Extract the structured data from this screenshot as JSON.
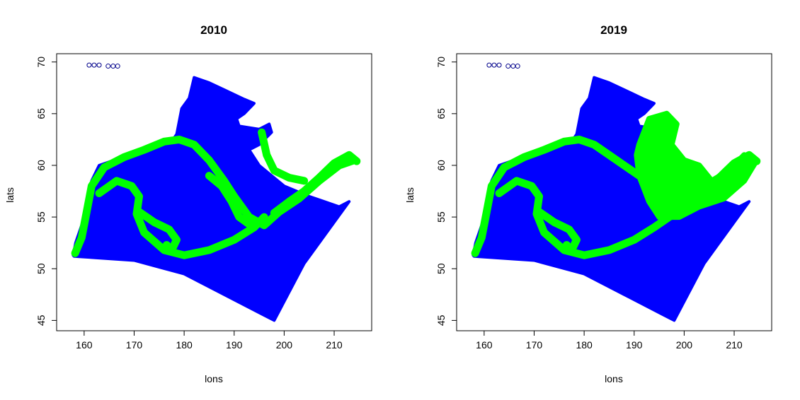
{
  "colors": {
    "ocean": "#0000ff",
    "change": "#00ff00",
    "marker_edge": "#00008b"
  },
  "chart_data": [
    {
      "type": "scatter",
      "title": "2010",
      "xlabel": "lons",
      "ylabel": "lats",
      "xlim": [
        154.5,
        217.5
      ],
      "ylim": [
        44,
        70.8
      ],
      "xticks": [
        160,
        170,
        180,
        190,
        200,
        210
      ],
      "yticks": [
        45,
        50,
        55,
        60,
        65,
        70
      ],
      "series": [
        {
          "color": "#0000ff",
          "kind": "filled-region",
          "region": [
            [
              157.8,
              51.3
            ],
            [
              158.3,
              52.5
            ],
            [
              159.5,
              54.2
            ],
            [
              160.8,
              56.0
            ],
            [
              161.5,
              58.5
            ],
            [
              163,
              60
            ],
            [
              166,
              60.5
            ],
            [
              170,
              61
            ],
            [
              174,
              61.5
            ],
            [
              177,
              62
            ],
            [
              178.5,
              63
            ],
            [
              179.5,
              65.5
            ],
            [
              181,
              66.5
            ],
            [
              182,
              68.5
            ],
            [
              185,
              68
            ],
            [
              188.5,
              67.2
            ],
            [
              192,
              66.4
            ],
            [
              194,
              66
            ],
            [
              192,
              65
            ],
            [
              190.5,
              64.5
            ],
            [
              191,
              63.8
            ],
            [
              195,
              63.5
            ],
            [
              197,
              64
            ],
            [
              197.5,
              63.2
            ],
            [
              195,
              62
            ],
            [
              193,
              61.5
            ],
            [
              195,
              60
            ],
            [
              200,
              58
            ],
            [
              205,
              57
            ],
            [
              208,
              56.5
            ],
            [
              211,
              56
            ],
            [
              213,
              56.5
            ],
            [
              204,
              50.5
            ],
            [
              198,
              45
            ],
            [
              196,
              45.5
            ],
            [
              188,
              47.5
            ],
            [
              180,
              49.5
            ],
            [
              170,
              50.8
            ],
            [
              158,
              51.2
            ]
          ]
        },
        {
          "color": "#00ff00",
          "kind": "change-path",
          "points": [
            [
              158.2,
              51.5
            ],
            [
              159.5,
              53
            ],
            [
              160.5,
              55.5
            ],
            [
              161.5,
              58
            ],
            [
              164,
              59.8
            ],
            [
              168,
              60.8
            ],
            [
              172,
              61.5
            ],
            [
              176,
              62.3
            ],
            [
              179,
              62.5
            ],
            [
              182,
              62
            ],
            [
              185,
              60.5
            ],
            [
              188,
              58.5
            ],
            [
              190,
              57
            ],
            [
              193,
              55
            ],
            [
              196,
              54.2
            ],
            [
              199,
              55.5
            ],
            [
              203,
              56.8
            ],
            [
              207,
              58.5
            ],
            [
              211,
              60
            ],
            [
              214,
              60.5
            ]
          ]
        },
        {
          "color": "#00ff00",
          "kind": "change-path",
          "points": [
            [
              163,
              57.3
            ],
            [
              166.5,
              58.5
            ],
            [
              169.5,
              58
            ],
            [
              171,
              57
            ],
            [
              170.5,
              55.3
            ],
            [
              172,
              53.5
            ],
            [
              176,
              51.8
            ],
            [
              180,
              51.3
            ],
            [
              185,
              51.8
            ],
            [
              190,
              52.8
            ],
            [
              194,
              54
            ],
            [
              196,
              55
            ]
          ]
        },
        {
          "color": "#00ff00",
          "kind": "change-path",
          "points": [
            [
              171,
              55.5
            ],
            [
              174,
              54.5
            ],
            [
              177,
              53.8
            ],
            [
              178.5,
              52.8
            ],
            [
              177.5,
              51.8
            ],
            [
              176.5,
              52.3
            ]
          ]
        },
        {
          "color": "#00ff00",
          "kind": "change-path",
          "points": [
            [
              185,
              59
            ],
            [
              187.5,
              58
            ],
            [
              189.5,
              56.5
            ],
            [
              191,
              55
            ],
            [
              193,
              54.3
            ]
          ]
        },
        {
          "color": "#00ff00",
          "kind": "change-path",
          "points": [
            [
              195.5,
              63.2
            ],
            [
              196.5,
              61
            ],
            [
              198,
              59.5
            ],
            [
              201,
              58.8
            ],
            [
              204,
              58.5
            ]
          ]
        },
        {
          "color": "#00ff00",
          "kind": "change-path",
          "points": [
            [
              198,
              55.4
            ],
            [
              201,
              56.5
            ],
            [
              204,
              57.5
            ],
            [
              207,
              58.8
            ],
            [
              210,
              60.2
            ],
            [
              213,
              61
            ],
            [
              214.5,
              60.4
            ]
          ]
        }
      ],
      "outliers": [
        [
          161,
          69.7
        ],
        [
          162,
          69.7
        ],
        [
          163,
          69.7
        ],
        [
          164.8,
          69.6
        ],
        [
          165.8,
          69.6
        ],
        [
          166.7,
          69.6
        ]
      ]
    },
    {
      "type": "scatter",
      "title": "2019",
      "xlabel": "lons",
      "ylabel": "lats",
      "xlim": [
        154.5,
        217.5
      ],
      "ylim": [
        44,
        70.8
      ],
      "xticks": [
        160,
        170,
        180,
        190,
        200,
        210
      ],
      "yticks": [
        45,
        50,
        55,
        60,
        65,
        70
      ],
      "series": [
        {
          "color": "#0000ff",
          "kind": "filled-region",
          "region": [
            [
              157.8,
              51.3
            ],
            [
              158.3,
              52.5
            ],
            [
              159.5,
              54.2
            ],
            [
              160.8,
              56.0
            ],
            [
              161.5,
              58.5
            ],
            [
              163,
              60
            ],
            [
              166,
              60.5
            ],
            [
              170,
              61
            ],
            [
              174,
              61.5
            ],
            [
              177,
              62
            ],
            [
              178.5,
              63
            ],
            [
              179.5,
              65.5
            ],
            [
              181,
              66.5
            ],
            [
              182,
              68.5
            ],
            [
              185,
              68
            ],
            [
              188.5,
              67.2
            ],
            [
              192,
              66.4
            ],
            [
              194,
              66
            ],
            [
              192,
              65
            ],
            [
              190.5,
              64.5
            ],
            [
              191,
              63.8
            ],
            [
              195,
              63.5
            ],
            [
              197,
              64
            ],
            [
              197.5,
              63.2
            ],
            [
              195,
              62
            ],
            [
              193,
              61.5
            ],
            [
              195,
              60
            ],
            [
              200,
              58
            ],
            [
              205,
              57
            ],
            [
              208,
              56.5
            ],
            [
              211,
              56
            ],
            [
              213,
              56.5
            ],
            [
              204,
              50.5
            ],
            [
              198,
              45
            ],
            [
              196,
              45.5
            ],
            [
              188,
              47.5
            ],
            [
              180,
              49.5
            ],
            [
              170,
              50.8
            ],
            [
              158,
              51.2
            ]
          ]
        },
        {
          "color": "#00ff00",
          "kind": "change-area",
          "region": [
            [
              191,
              62
            ],
            [
              193,
              64.5
            ],
            [
              196.5,
              65
            ],
            [
              198.5,
              64
            ],
            [
              197.5,
              62
            ],
            [
              200,
              60.5
            ],
            [
              203,
              60
            ],
            [
              205.5,
              58.5
            ],
            [
              209,
              59.5
            ],
            [
              212,
              61
            ],
            [
              214.5,
              60.5
            ],
            [
              212,
              58.5
            ],
            [
              208,
              56.8
            ],
            [
              203,
              56
            ],
            [
              199,
              55
            ],
            [
              195,
              55
            ],
            [
              193,
              56.5
            ],
            [
              191,
              59
            ],
            [
              190.5,
              61
            ]
          ]
        },
        {
          "color": "#00ff00",
          "kind": "change-path",
          "points": [
            [
              158.2,
              51.5
            ],
            [
              159.5,
              53
            ],
            [
              160.5,
              55.5
            ],
            [
              161.5,
              58
            ],
            [
              164,
              59.8
            ],
            [
              168,
              60.8
            ],
            [
              172,
              61.5
            ],
            [
              176,
              62.3
            ],
            [
              179,
              62.5
            ],
            [
              182,
              62
            ],
            [
              185,
              61
            ],
            [
              188,
              60
            ],
            [
              191,
              59
            ]
          ]
        },
        {
          "color": "#00ff00",
          "kind": "change-path",
          "points": [
            [
              163,
              57.3
            ],
            [
              166.5,
              58.5
            ],
            [
              169.5,
              58
            ],
            [
              171,
              57
            ],
            [
              170.5,
              55.3
            ],
            [
              172,
              53.5
            ],
            [
              176,
              51.8
            ],
            [
              180,
              51.3
            ],
            [
              185,
              51.8
            ],
            [
              190,
              52.8
            ],
            [
              194,
              54
            ],
            [
              197,
              55
            ]
          ]
        },
        {
          "color": "#00ff00",
          "kind": "change-path",
          "points": [
            [
              171,
              55.5
            ],
            [
              174,
              54.5
            ],
            [
              177,
              53.8
            ],
            [
              178.5,
              52.8
            ],
            [
              177.5,
              51.8
            ],
            [
              176.5,
              52.3
            ]
          ]
        },
        {
          "color": "#00ff00",
          "kind": "change-path",
          "points": [
            [
              198,
              55.4
            ],
            [
              201,
              56.5
            ],
            [
              204,
              57.5
            ],
            [
              207,
              58.8
            ],
            [
              210,
              60.2
            ],
            [
              213,
              61
            ],
            [
              214.5,
              60.4
            ]
          ]
        }
      ],
      "outliers": [
        [
          161,
          69.7
        ],
        [
          162,
          69.7
        ],
        [
          163,
          69.7
        ],
        [
          164.8,
          69.6
        ],
        [
          165.8,
          69.6
        ],
        [
          166.7,
          69.6
        ]
      ]
    }
  ]
}
